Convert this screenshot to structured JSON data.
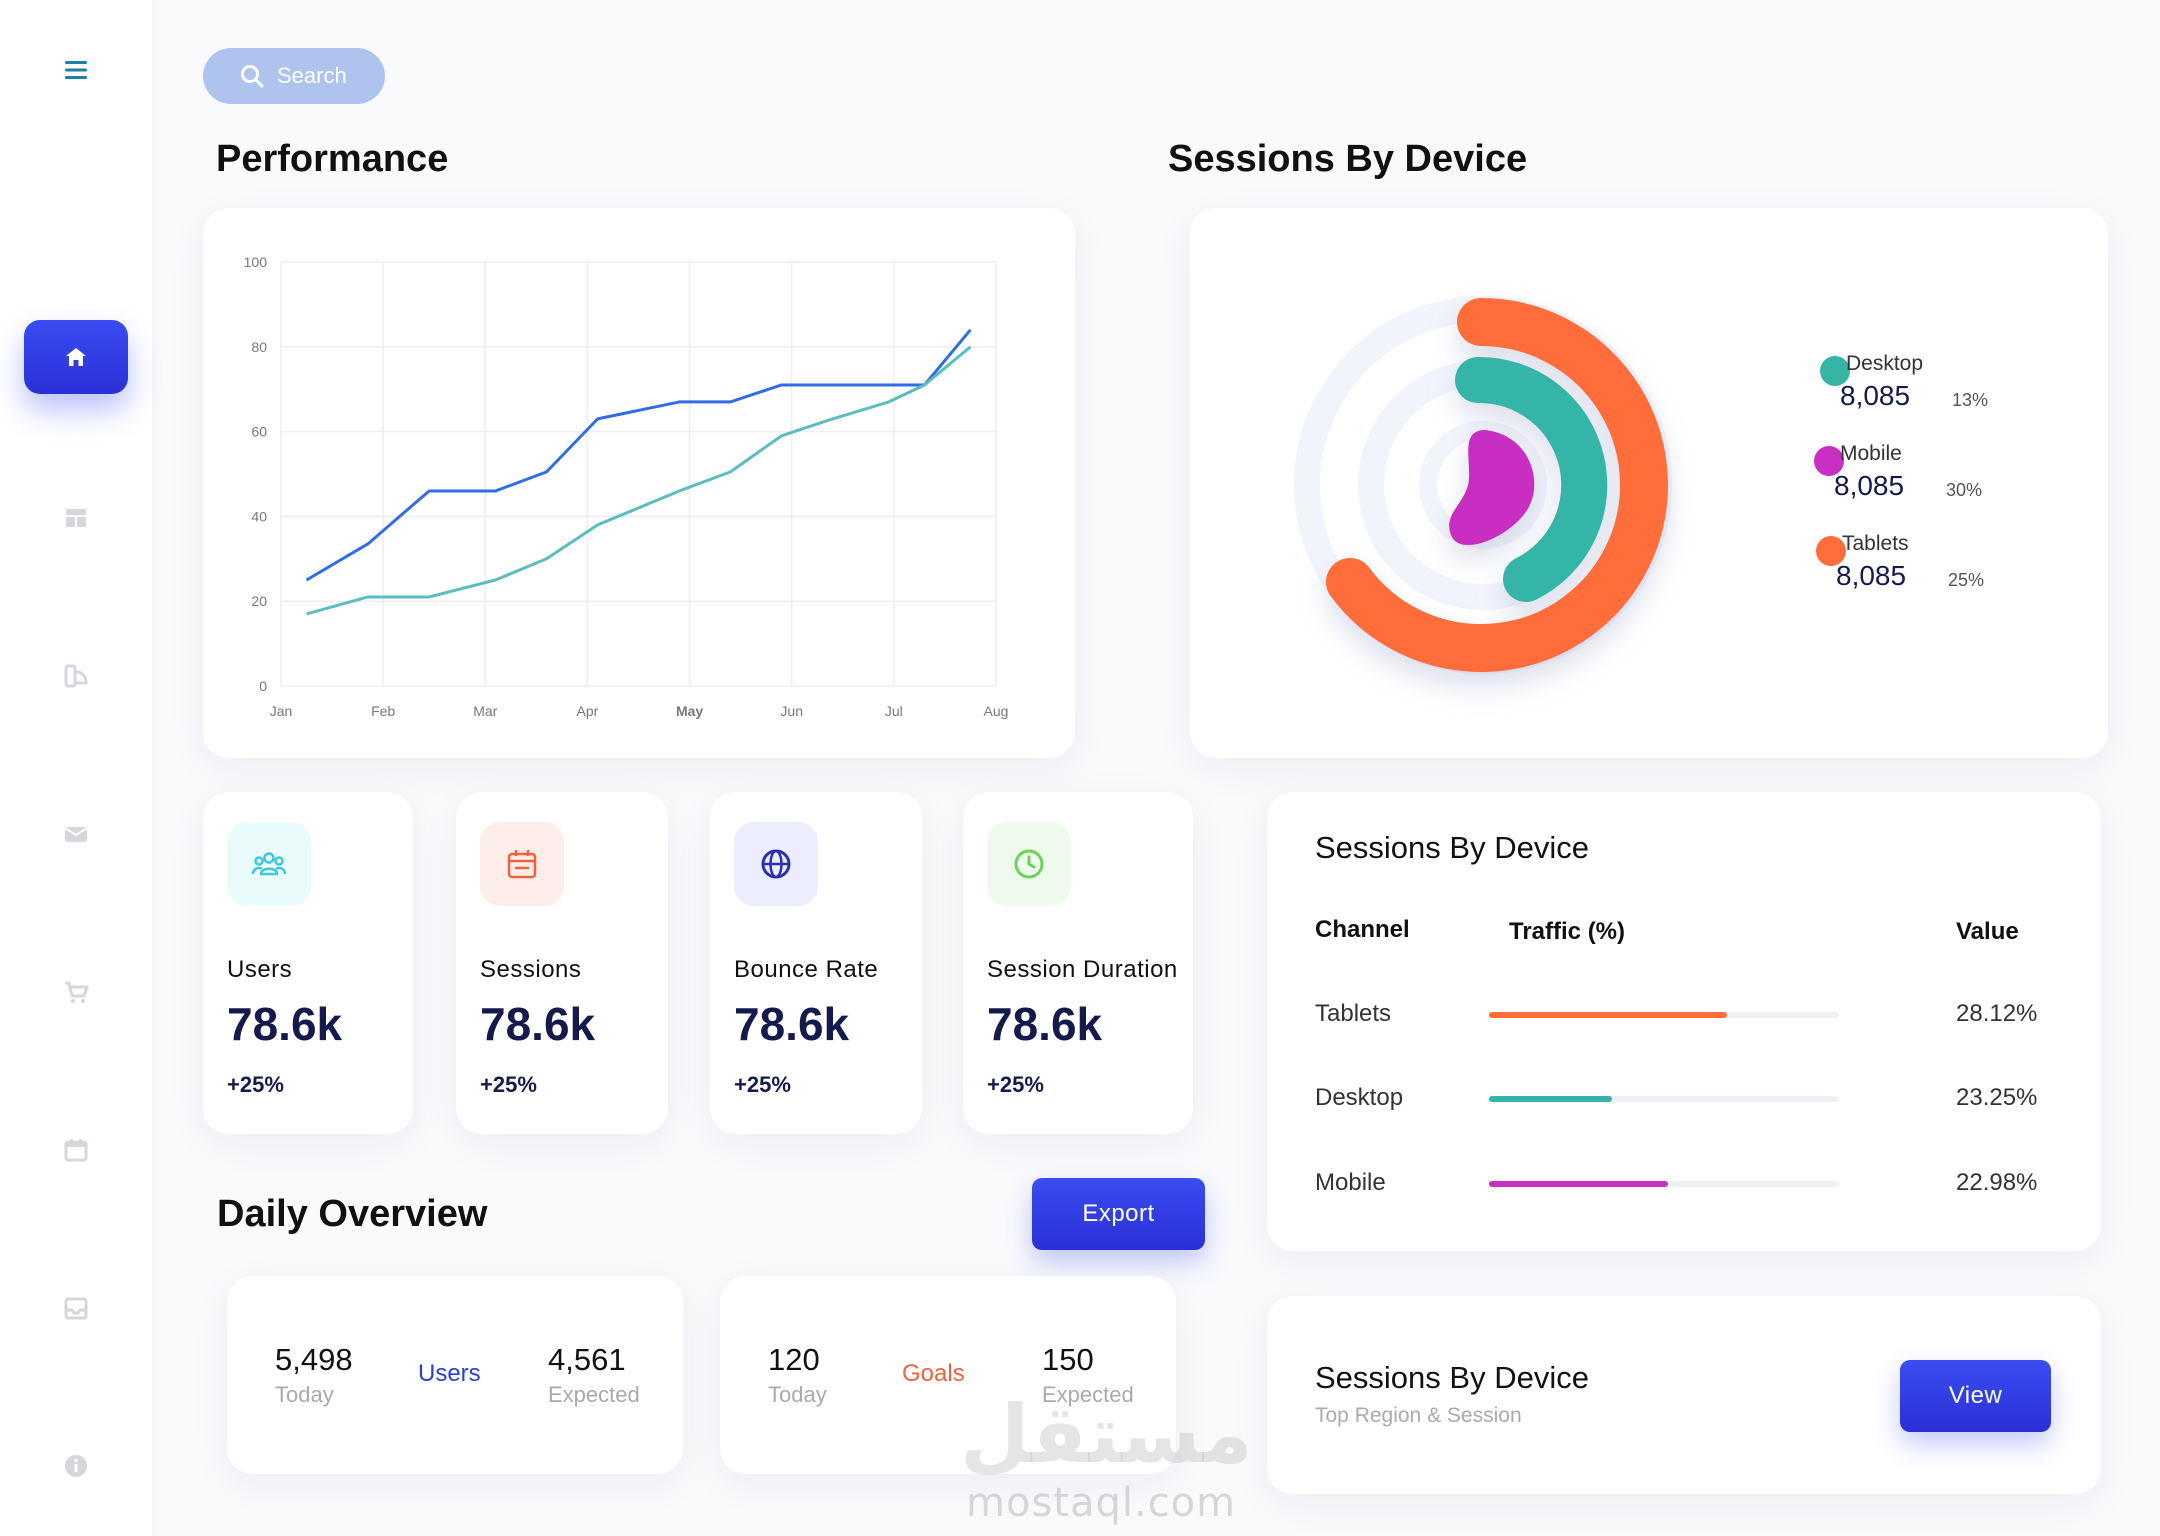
{
  "search": {
    "label": "Search"
  },
  "sidebar": {
    "items": [
      {
        "name": "menu",
        "icon": "hamburger-icon"
      },
      {
        "name": "home",
        "icon": "home-icon",
        "active": true
      },
      {
        "name": "dashboard",
        "icon": "layout-icon"
      },
      {
        "name": "reports",
        "icon": "chart-icon"
      },
      {
        "name": "mail",
        "icon": "mail-icon"
      },
      {
        "name": "cart",
        "icon": "cart-icon"
      },
      {
        "name": "calendar",
        "icon": "calendar-icon"
      },
      {
        "name": "inbox",
        "icon": "inbox-icon"
      },
      {
        "name": "info",
        "icon": "info-icon"
      }
    ]
  },
  "performance": {
    "title": "Performance"
  },
  "chart_data": {
    "type": "line",
    "categories": [
      "Jan",
      "Feb",
      "Mar",
      "Apr",
      "May",
      "Jun",
      "Jul",
      "Aug"
    ],
    "ylim": [
      0,
      100
    ],
    "yticks": [
      0,
      20,
      40,
      60,
      80,
      100
    ],
    "grid": true,
    "highlight_category": "May",
    "series": [
      {
        "color": "#2f6ce5",
        "x": [
          0.25,
          0.85,
          1.45,
          2.1,
          2.6,
          3.1,
          3.9,
          4.4,
          4.9,
          5.4,
          5.95,
          6.3,
          6.75
        ],
        "values": [
          25,
          33.5,
          46,
          46,
          50.5,
          63,
          67,
          67,
          71,
          71,
          71,
          71,
          84
        ]
      },
      {
        "color": "#5bbdbc",
        "x": [
          0.25,
          0.85,
          1.45,
          2.1,
          2.6,
          3.1,
          3.9,
          4.4,
          4.9,
          5.4,
          5.95,
          6.3,
          6.75
        ],
        "values": [
          17,
          21,
          21,
          25,
          30,
          38,
          46,
          50.5,
          59,
          63,
          67,
          71,
          80
        ]
      }
    ]
  },
  "sessions_device": {
    "title": "Sessions By Device",
    "legend": [
      {
        "name": "Desktop",
        "value": "8,085",
        "pct": "13%",
        "color": "#36b5a7"
      },
      {
        "name": "Mobile",
        "value": "8,085",
        "pct": "30%",
        "color": "#c92fc3"
      },
      {
        "name": "Tablets",
        "value": "8,085",
        "pct": "25%",
        "color": "#ff6d3a"
      }
    ]
  },
  "stats": [
    {
      "label": "Users",
      "value": "78.6k",
      "change": "+25%",
      "icon": "users-icon",
      "icon_color": "#3fc9d8",
      "bg": "#e9fbfb"
    },
    {
      "label": "Sessions",
      "value": "78.6k",
      "change": "+25%",
      "icon": "calendar-icon",
      "icon_color": "#f0623d",
      "bg": "#fdeeea"
    },
    {
      "label": "Bounce Rate",
      "value": "78.6k",
      "change": "+25%",
      "icon": "globe-icon",
      "icon_color": "#2a2fb4",
      "bg": "#eceefd"
    },
    {
      "label": "Session Duration",
      "value": "78.6k",
      "change": "+25%",
      "icon": "clock-icon",
      "icon_color": "#6ed15a",
      "bg": "#eefbec"
    }
  ],
  "channel_table": {
    "title": "Sessions By Device",
    "headers": [
      "Channel",
      "Traffic (%)",
      "Value"
    ],
    "rows": [
      {
        "channel": "Tablets",
        "traffic": 0.68,
        "value": "28.12%",
        "color": "#ff6d3a"
      },
      {
        "channel": "Desktop",
        "traffic": 0.35,
        "value": "23.25%",
        "color": "#36b5a7"
      },
      {
        "channel": "Mobile",
        "traffic": 0.51,
        "value": "22.98%",
        "color": "#c92fc3"
      }
    ]
  },
  "daily": {
    "title": "Daily Overview",
    "export_label": "Export",
    "cards": [
      {
        "today_value": "5,498",
        "today_label": "Today",
        "middle": "Users",
        "middle_color": "#2a3fd6",
        "expected_value": "4,561",
        "expected_label": "Expected"
      },
      {
        "today_value": "120",
        "today_label": "Today",
        "middle": "Goals",
        "middle_color": "#f0623d",
        "expected_value": "150",
        "expected_label": "Expected"
      }
    ]
  },
  "region_card": {
    "title": "Sessions By Device",
    "subtitle": "Top Region & Session",
    "button": "View"
  },
  "watermark": {
    "arabic": "مستقل",
    "latin": "mostaql.com"
  }
}
